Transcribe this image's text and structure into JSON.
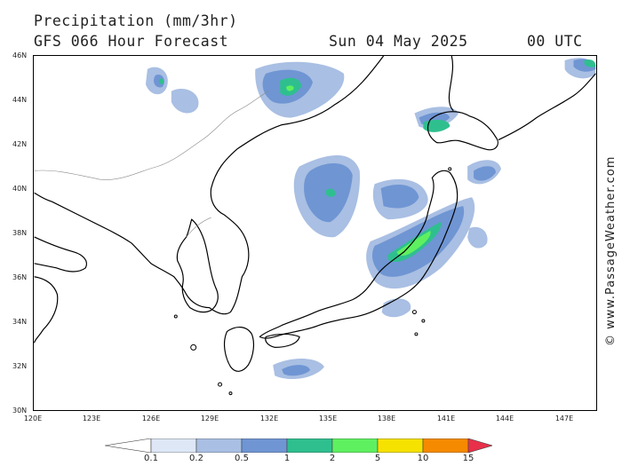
{
  "header": {
    "title": "Precipitation (mm/3hr)",
    "model": "GFS 066 Hour Forecast",
    "date": "Sun 04 May 2025",
    "time": "00 UTC"
  },
  "axes": {
    "lat_labels": [
      "46N",
      "44N",
      "42N",
      "40N",
      "38N",
      "36N",
      "34N",
      "32N",
      "30N"
    ],
    "lon_labels": [
      "120E",
      "123E",
      "126E",
      "129E",
      "132E",
      "135E",
      "138E",
      "141E",
      "144E",
      "147E"
    ]
  },
  "credit": "© www.PassageWeather.com",
  "legend": {
    "values": [
      "0.1",
      "0.2",
      "0.5",
      "1",
      "2",
      "5",
      "10",
      "15"
    ],
    "colors": [
      "#ffffff",
      "#dde7f5",
      "#a9bfe3",
      "#6f95d3",
      "#2fbf8f",
      "#5ff060",
      "#f6e200",
      "#f58a00",
      "#e8304a"
    ]
  }
}
